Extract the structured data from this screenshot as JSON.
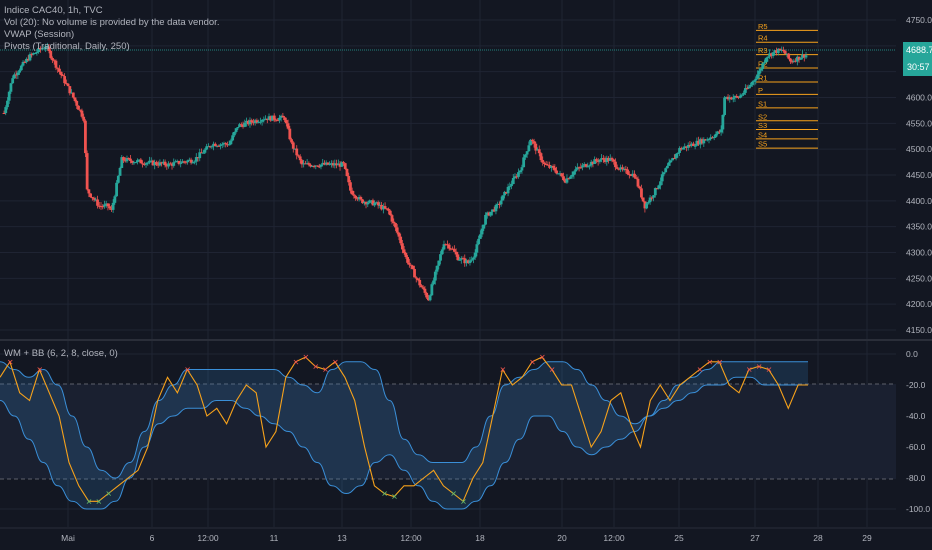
{
  "legend": {
    "symbol": "Indice CAC40, 1h, TVC",
    "vol": "Vol (20): No volume is provided by the data vendor.",
    "vwap": "VWAP (Session)",
    "pivots": "Pivots (Traditional, Daily, 250)",
    "osc": "WM + BB (6, 2, 8, close, 0)"
  },
  "price_axis": {
    "ticks": [
      "4750.0",
      "4700.0",
      "4650.0",
      "4600.0",
      "4550.0",
      "4500.0",
      "4450.0",
      "4400.0",
      "4350.0",
      "4300.0",
      "4250.0",
      "4200.0",
      "4150.0"
    ]
  },
  "price_label": {
    "value": "4688.7",
    "countdown": "30:57"
  },
  "osc_axis": {
    "ticks": [
      "0.0",
      "-20.0",
      "-40.0",
      "-60.0",
      "-80.0",
      "-100.0"
    ]
  },
  "time_axis": {
    "ticks": [
      "Mai",
      "6",
      "12:00",
      "11",
      "13",
      "12:00",
      "18",
      "20",
      "12:00",
      "25",
      "27",
      "28",
      "29"
    ]
  },
  "pivot_levels": [
    {
      "label": "R5",
      "price": 4730
    },
    {
      "label": "R4",
      "price": 4707
    },
    {
      "label": "R3",
      "price": 4683
    },
    {
      "label": "R2",
      "price": 4657
    },
    {
      "label": "R1",
      "price": 4630
    },
    {
      "label": "P",
      "price": 4606
    },
    {
      "label": "S1",
      "price": 4580
    },
    {
      "label": "S2",
      "price": 4555
    },
    {
      "label": "S3",
      "price": 4538
    },
    {
      "label": "S4",
      "price": 4520
    },
    {
      "label": "S5",
      "price": 4502
    }
  ],
  "colors": {
    "up": "#26a69a",
    "down": "#ef5350",
    "wm": "#f7a21b",
    "bb": "#3a8fd8",
    "pivot": "#f7a21b",
    "bg": "#131722",
    "grid": "#1f2433"
  },
  "chart_data": {
    "type": "candlestick",
    "price_range": [
      4150,
      4770
    ],
    "osc_range": [
      -105,
      5
    ],
    "anchors": [
      [
        0,
        4570
      ],
      [
        5,
        4640
      ],
      [
        15,
        4680
      ],
      [
        24,
        4700
      ],
      [
        32,
        4650
      ],
      [
        40,
        4600
      ],
      [
        46,
        4560
      ],
      [
        48,
        4420
      ],
      [
        55,
        4390
      ],
      [
        60,
        4390
      ],
      [
        62,
        4380
      ],
      [
        68,
        4480
      ],
      [
        80,
        4475
      ],
      [
        95,
        4470
      ],
      [
        110,
        4480
      ],
      [
        120,
        4510
      ],
      [
        130,
        4510
      ],
      [
        135,
        4545
      ],
      [
        150,
        4560
      ],
      [
        162,
        4560
      ],
      [
        166,
        4510
      ],
      [
        172,
        4470
      ],
      [
        185,
        4470
      ],
      [
        196,
        4470
      ],
      [
        200,
        4420
      ],
      [
        206,
        4400
      ],
      [
        214,
        4395
      ],
      [
        222,
        4380
      ],
      [
        228,
        4330
      ],
      [
        232,
        4290
      ],
      [
        238,
        4250
      ],
      [
        245,
        4210
      ],
      [
        250,
        4270
      ],
      [
        254,
        4320
      ],
      [
        258,
        4310
      ],
      [
        262,
        4290
      ],
      [
        268,
        4280
      ],
      [
        272,
        4300
      ],
      [
        278,
        4370
      ],
      [
        285,
        4390
      ],
      [
        292,
        4430
      ],
      [
        298,
        4460
      ],
      [
        304,
        4520
      ],
      [
        312,
        4470
      ],
      [
        318,
        4460
      ],
      [
        324,
        4440
      ],
      [
        330,
        4460
      ],
      [
        336,
        4470
      ],
      [
        344,
        4480
      ],
      [
        350,
        4480
      ],
      [
        356,
        4460
      ],
      [
        364,
        4450
      ],
      [
        370,
        4390
      ],
      [
        376,
        4420
      ],
      [
        382,
        4460
      ],
      [
        390,
        4500
      ],
      [
        398,
        4510
      ],
      [
        406,
        4520
      ],
      [
        414,
        4535
      ],
      [
        416,
        4600
      ],
      [
        424,
        4600
      ],
      [
        430,
        4620
      ],
      [
        436,
        4650
      ],
      [
        440,
        4680
      ],
      [
        446,
        4690
      ],
      [
        450,
        4690
      ],
      [
        454,
        4670
      ],
      [
        462,
        4682
      ]
    ],
    "wm": [
      -15,
      -5,
      -25,
      -30,
      -10,
      -25,
      -40,
      -70,
      -85,
      -95,
      -95,
      -90,
      -85,
      -80,
      -75,
      -60,
      -30,
      -15,
      -25,
      -10,
      -20,
      -40,
      -35,
      -45,
      -30,
      -20,
      -25,
      -60,
      -50,
      -15,
      -5,
      -2,
      -8,
      -10,
      -5,
      -15,
      -30,
      -60,
      -85,
      -90,
      -92,
      -85,
      -85,
      -80,
      -75,
      -85,
      -90,
      -95,
      -80,
      -70,
      -40,
      -10,
      -20,
      -15,
      -5,
      -2,
      -10,
      -20,
      -20,
      -40,
      -60,
      -50,
      -30,
      -25,
      -45,
      -60,
      -30,
      -20,
      -30,
      -20,
      -15,
      -10,
      -5,
      -5,
      -20,
      -25,
      -10,
      -8,
      -10,
      -20,
      -35,
      -20,
      -20
    ],
    "bb_upper": [
      -5,
      -10,
      -15,
      -10,
      -20,
      -40,
      -60,
      -75,
      -80,
      -70,
      -50,
      -30,
      -20,
      -10,
      -10,
      -10,
      -10,
      -10,
      -10,
      -10,
      -15,
      -20,
      -25,
      -10,
      -5,
      -5,
      -10,
      -30,
      -55,
      -65,
      -70,
      -70,
      -70,
      -60,
      -40,
      -20,
      -15,
      -10,
      -5,
      -5,
      -10,
      -20,
      -30,
      -40,
      -45,
      -40,
      -30,
      -20,
      -15,
      -10,
      -5,
      -5,
      -5,
      -5,
      -5,
      -5,
      -5
    ],
    "bb_lower": [
      -30,
      -40,
      -55,
      -70,
      -85,
      -95,
      -100,
      -100,
      -95,
      -80,
      -60,
      -45,
      -40,
      -35,
      -35,
      -30,
      -30,
      -35,
      -40,
      -45,
      -50,
      -60,
      -70,
      -85,
      -90,
      -85,
      -70,
      -65,
      -75,
      -85,
      -95,
      -100,
      -100,
      -95,
      -85,
      -70,
      -55,
      -40,
      -40,
      -50,
      -60,
      -65,
      -60,
      -55,
      -50,
      -40,
      -35,
      -30,
      -25,
      -20,
      -20,
      -15,
      -15,
      -20,
      -20,
      -20,
      -20
    ]
  }
}
